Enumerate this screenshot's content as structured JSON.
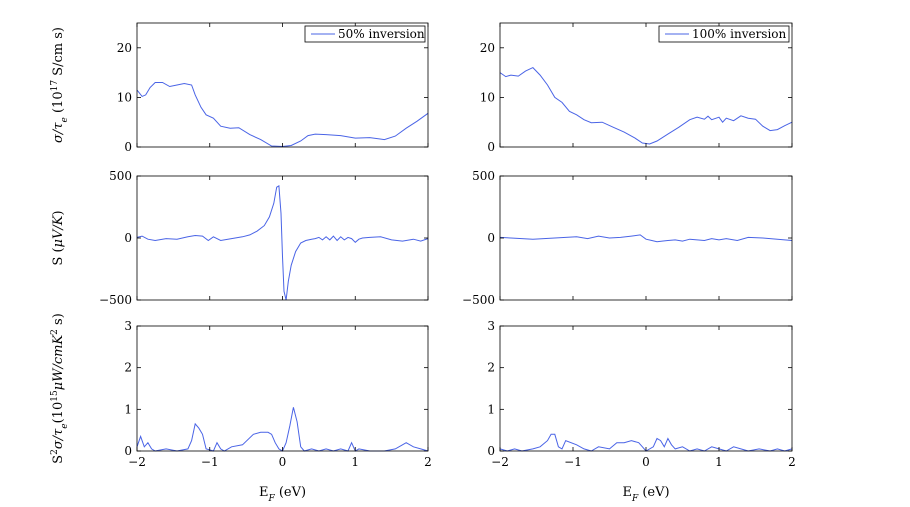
{
  "figure": {
    "colors": {
      "line": "#4a64e6",
      "axis": "#000000",
      "background": "#ffffff"
    },
    "xlabel": "E_F (eV)",
    "row_ylabels": [
      "σ/τ_e (10^17 S/cm s)",
      "S (μV/K)",
      "S^2σ/τ_e(10^15 μW/cmK^2 s)"
    ],
    "x_ticks": [
      "−2",
      "−1",
      "0",
      "1",
      "2"
    ]
  },
  "chart_data": [
    {
      "type": "line",
      "panel": "top-left",
      "legend": "50% inversion",
      "legend_position": "top-right",
      "xlim": [
        -2,
        2
      ],
      "ylim": [
        0,
        25
      ],
      "y_ticks": [
        "0",
        "10",
        "20"
      ],
      "series": [
        {
          "name": "50% inversion",
          "x": [
            -2.0,
            -1.93,
            -1.88,
            -1.82,
            -1.75,
            -1.65,
            -1.55,
            -1.45,
            -1.35,
            -1.25,
            -1.2,
            -1.12,
            -1.05,
            -0.95,
            -0.85,
            -0.72,
            -0.6,
            -0.45,
            -0.3,
            -0.15,
            0.0,
            0.12,
            0.25,
            0.35,
            0.45,
            0.6,
            0.8,
            1.0,
            1.2,
            1.4,
            1.55,
            1.7,
            1.85,
            2.0
          ],
          "y": [
            11.5,
            10.2,
            10.5,
            12.0,
            13.0,
            13.0,
            12.2,
            12.5,
            12.8,
            12.5,
            10.5,
            8.0,
            6.5,
            5.8,
            4.2,
            3.8,
            3.9,
            2.5,
            1.5,
            0.2,
            0.1,
            0.3,
            1.2,
            2.3,
            2.6,
            2.5,
            2.3,
            1.8,
            1.9,
            1.5,
            2.2,
            3.8,
            5.2,
            6.8
          ]
        }
      ]
    },
    {
      "type": "line",
      "panel": "top-right",
      "legend": "100% inversion",
      "legend_position": "top-right",
      "xlim": [
        -2,
        2
      ],
      "ylim": [
        0,
        25
      ],
      "y_ticks": [
        "0",
        "10",
        "20"
      ],
      "series": [
        {
          "name": "100% inversion",
          "x": [
            -2.0,
            -1.92,
            -1.85,
            -1.75,
            -1.65,
            -1.55,
            -1.45,
            -1.35,
            -1.25,
            -1.15,
            -1.05,
            -0.95,
            -0.85,
            -0.75,
            -0.6,
            -0.45,
            -0.3,
            -0.15,
            -0.05,
            0.05,
            0.15,
            0.3,
            0.45,
            0.6,
            0.7,
            0.8,
            0.85,
            0.9,
            1.0,
            1.05,
            1.1,
            1.2,
            1.3,
            1.4,
            1.5,
            1.6,
            1.7,
            1.8,
            1.9,
            2.0
          ],
          "y": [
            15.0,
            14.2,
            14.5,
            14.3,
            15.3,
            16.0,
            14.5,
            12.5,
            10.0,
            9.0,
            7.2,
            6.5,
            5.5,
            4.9,
            5.0,
            4.0,
            3.0,
            1.8,
            0.8,
            0.6,
            1.2,
            2.6,
            4.0,
            5.5,
            6.0,
            5.6,
            6.2,
            5.5,
            6.0,
            5.0,
            5.8,
            5.3,
            6.3,
            5.8,
            5.6,
            4.2,
            3.3,
            3.5,
            4.3,
            5.0
          ]
        }
      ]
    },
    {
      "type": "line",
      "panel": "middle-left",
      "xlim": [
        -2,
        2
      ],
      "ylim": [
        -500,
        500
      ],
      "y_ticks": [
        "−500",
        "0",
        "500"
      ],
      "series": [
        {
          "x": [
            -2.0,
            -1.93,
            -1.85,
            -1.75,
            -1.6,
            -1.45,
            -1.3,
            -1.2,
            -1.1,
            -1.02,
            -0.95,
            -0.85,
            -0.75,
            -0.65,
            -0.55,
            -0.45,
            -0.35,
            -0.25,
            -0.18,
            -0.12,
            -0.08,
            -0.05,
            -0.02,
            0.0,
            0.02,
            0.05,
            0.08,
            0.12,
            0.18,
            0.25,
            0.32,
            0.4,
            0.45,
            0.5,
            0.55,
            0.6,
            0.65,
            0.7,
            0.75,
            0.8,
            0.85,
            0.9,
            0.95,
            1.0,
            1.05,
            1.1,
            1.2,
            1.35,
            1.5,
            1.65,
            1.8,
            1.9,
            2.0
          ],
          "y": [
            5,
            15,
            -10,
            -20,
            -5,
            -10,
            10,
            20,
            15,
            -20,
            10,
            -20,
            -10,
            0,
            10,
            25,
            55,
            100,
            170,
            280,
            410,
            420,
            200,
            -150,
            -430,
            -500,
            -350,
            -220,
            -110,
            -40,
            -20,
            -10,
            -5,
            5,
            -15,
            10,
            -15,
            15,
            -20,
            10,
            -15,
            5,
            -5,
            -35,
            -10,
            0,
            5,
            10,
            -15,
            -25,
            -10,
            -25,
            -5
          ]
        }
      ]
    },
    {
      "type": "line",
      "panel": "middle-right",
      "xlim": [
        -2,
        2
      ],
      "ylim": [
        -500,
        500
      ],
      "y_ticks": [
        "−500",
        "0",
        "500"
      ],
      "series": [
        {
          "x": [
            -2.0,
            -1.85,
            -1.7,
            -1.55,
            -1.4,
            -1.25,
            -1.1,
            -0.95,
            -0.8,
            -0.65,
            -0.5,
            -0.35,
            -0.2,
            -0.08,
            0.0,
            0.08,
            0.15,
            0.22,
            0.3,
            0.4,
            0.5,
            0.6,
            0.7,
            0.8,
            0.9,
            1.0,
            1.1,
            1.25,
            1.4,
            1.6,
            1.8,
            2.0
          ],
          "y": [
            5,
            0,
            -5,
            -10,
            -5,
            0,
            5,
            10,
            -5,
            15,
            0,
            5,
            15,
            25,
            -10,
            -20,
            -30,
            -25,
            -20,
            -15,
            -25,
            -10,
            -15,
            -20,
            -5,
            -15,
            -5,
            -20,
            5,
            0,
            -10,
            -20
          ]
        }
      ]
    },
    {
      "type": "line",
      "panel": "bottom-left",
      "xlim": [
        -2,
        2
      ],
      "ylim": [
        0,
        3
      ],
      "y_ticks": [
        "0",
        "1",
        "2",
        "3"
      ],
      "series": [
        {
          "x": [
            -2.0,
            -1.95,
            -1.9,
            -1.85,
            -1.8,
            -1.75,
            -1.6,
            -1.45,
            -1.3,
            -1.25,
            -1.2,
            -1.15,
            -1.1,
            -1.05,
            -0.95,
            -0.9,
            -0.85,
            -0.8,
            -0.7,
            -0.55,
            -0.4,
            -0.3,
            -0.2,
            -0.15,
            -0.1,
            -0.05,
            0.0,
            0.05,
            0.1,
            0.15,
            0.2,
            0.25,
            0.3,
            0.4,
            0.5,
            0.6,
            0.7,
            0.8,
            0.9,
            0.95,
            1.0,
            1.05,
            1.2,
            1.4,
            1.55,
            1.65,
            1.7,
            1.8,
            1.9,
            2.0
          ],
          "y": [
            0.1,
            0.35,
            0.1,
            0.2,
            0.05,
            0.0,
            0.05,
            0.0,
            0.05,
            0.25,
            0.65,
            0.55,
            0.4,
            0.05,
            0.0,
            0.2,
            0.05,
            0.0,
            0.1,
            0.15,
            0.4,
            0.45,
            0.45,
            0.4,
            0.2,
            0.05,
            0.0,
            0.2,
            0.6,
            1.05,
            0.7,
            0.1,
            0.0,
            0.05,
            0.0,
            0.05,
            0.0,
            0.05,
            0.0,
            0.2,
            0.0,
            0.05,
            0.0,
            0.0,
            0.05,
            0.15,
            0.2,
            0.1,
            0.05,
            0.0
          ]
        }
      ]
    },
    {
      "type": "line",
      "panel": "bottom-right",
      "xlim": [
        -2,
        2
      ],
      "ylim": [
        0,
        3
      ],
      "y_ticks": [
        "0",
        "1",
        "2",
        "3"
      ],
      "series": [
        {
          "x": [
            -2.0,
            -1.9,
            -1.8,
            -1.7,
            -1.55,
            -1.45,
            -1.35,
            -1.3,
            -1.25,
            -1.2,
            -1.15,
            -1.1,
            -0.95,
            -0.85,
            -0.75,
            -0.65,
            -0.5,
            -0.4,
            -0.3,
            -0.2,
            -0.1,
            -0.05,
            0.0,
            0.1,
            0.15,
            0.2,
            0.25,
            0.3,
            0.35,
            0.4,
            0.5,
            0.6,
            0.7,
            0.8,
            0.9,
            1.0,
            1.1,
            1.2,
            1.3,
            1.4,
            1.55,
            1.7,
            1.8,
            1.9,
            2.0
          ],
          "y": [
            0.05,
            0.0,
            0.05,
            0.0,
            0.05,
            0.1,
            0.25,
            0.4,
            0.4,
            0.1,
            0.05,
            0.25,
            0.15,
            0.05,
            0.0,
            0.1,
            0.05,
            0.2,
            0.2,
            0.25,
            0.2,
            0.1,
            0.0,
            0.1,
            0.3,
            0.25,
            0.1,
            0.3,
            0.15,
            0.05,
            0.1,
            0.0,
            0.05,
            0.0,
            0.1,
            0.05,
            0.0,
            0.1,
            0.05,
            0.0,
            0.05,
            0.0,
            0.05,
            0.0,
            0.05
          ]
        }
      ]
    }
  ]
}
